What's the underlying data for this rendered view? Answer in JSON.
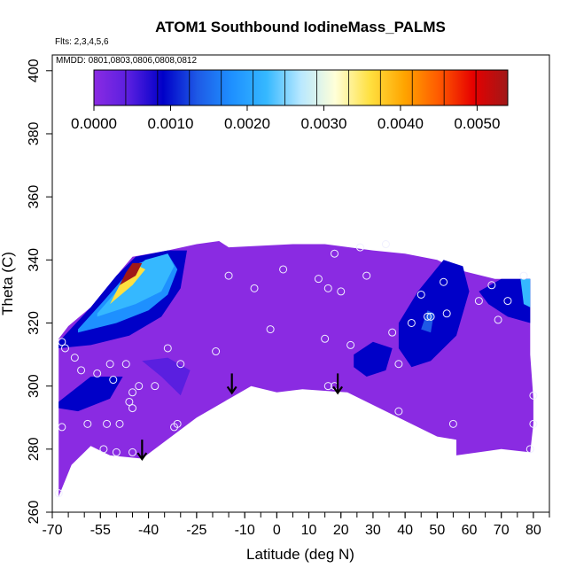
{
  "chart_data": {
    "type": "heatmap",
    "title": "ATOM1 Southbound IodineMass_PALMS",
    "flights_note": "Flts: 2,3,4,5,6",
    "dates_note": "MMDD: 0801,0803,0806,0808,0812",
    "xlabel": "Latitude (deg N)",
    "ylabel": "Theta (C)",
    "xlim": [
      -70,
      85
    ],
    "ylim": [
      260,
      405
    ],
    "x_ticks": [
      -70,
      -55,
      -40,
      -25,
      -10,
      0,
      10,
      20,
      30,
      40,
      50,
      60,
      70,
      80
    ],
    "x_tick_labels": [
      "-70",
      "-55",
      "-40",
      "-25",
      "-10",
      "0",
      "10",
      "20",
      "30",
      "40",
      "50",
      "60",
      "70",
      "80"
    ],
    "y_ticks": [
      260,
      280,
      300,
      320,
      340,
      360,
      380,
      400
    ],
    "y_tick_labels": [
      "260",
      "280",
      "300",
      "320",
      "340",
      "360",
      "380",
      "400"
    ],
    "colorbar": {
      "range": [
        0,
        0.0054
      ],
      "ticks": [
        0.0,
        0.001,
        0.002,
        0.003,
        0.004,
        0.005
      ],
      "tick_labels": [
        "0.0000",
        "0.0010",
        "0.0020",
        "0.0030",
        "0.0040",
        "0.0050"
      ],
      "colors": [
        "#8a2be2",
        "#5a1fe0",
        "#0000c8",
        "#1e5ae6",
        "#1e90ff",
        "#35b8ff",
        "#b8e8ff",
        "#ffffd8",
        "#ffe040",
        "#ffa500",
        "#ff5a00",
        "#e60000",
        "#a01818"
      ]
    },
    "fill_colors": {
      "background": "#8a2be2",
      "mid": "#5a1fe0",
      "dark": "#1010c8",
      "blue": "#1e50e6",
      "cyan": "#2ba8ff"
    },
    "domain_outline": [
      [
        -68,
        265
      ],
      [
        -64,
        275
      ],
      [
        -58,
        281
      ],
      [
        -52,
        278
      ],
      [
        -42,
        277
      ],
      [
        -25,
        290
      ],
      [
        -8,
        300
      ],
      [
        0,
        298
      ],
      [
        8,
        299
      ],
      [
        22,
        298
      ],
      [
        36,
        291
      ],
      [
        50,
        284
      ],
      [
        56,
        283
      ],
      [
        56,
        278
      ],
      [
        70,
        280
      ],
      [
        79,
        279
      ],
      [
        80,
        288
      ],
      [
        80,
        296
      ],
      [
        79,
        310
      ],
      [
        79,
        334
      ],
      [
        68,
        334
      ],
      [
        56,
        337
      ],
      [
        50,
        340
      ],
      [
        40,
        342
      ],
      [
        30,
        343
      ],
      [
        15,
        345
      ],
      [
        5,
        345
      ],
      [
        -15,
        344
      ],
      [
        -18,
        346
      ],
      [
        -25,
        345
      ],
      [
        -34,
        343
      ],
      [
        -45,
        341
      ],
      [
        -50,
        335
      ],
      [
        -58,
        325
      ],
      [
        -65,
        319
      ],
      [
        -68,
        315
      ]
    ],
    "features": [
      {
        "level": 0.0009,
        "poly": [
          [
            -68,
            314
          ],
          [
            -58,
            325
          ],
          [
            -50,
            335
          ],
          [
            -44,
            341
          ],
          [
            -34,
            343
          ],
          [
            -28,
            343
          ],
          [
            -30,
            331
          ],
          [
            -36,
            322
          ],
          [
            -46,
            316
          ],
          [
            -58,
            313
          ],
          [
            -68,
            312
          ]
        ]
      },
      {
        "level": 0.0018,
        "poly": [
          [
            -62,
            318
          ],
          [
            -54,
            327
          ],
          [
            -48,
            334
          ],
          [
            -43,
            339
          ],
          [
            -34,
            342
          ],
          [
            -31,
            337
          ],
          [
            -34,
            329
          ],
          [
            -40,
            324
          ],
          [
            -50,
            320
          ],
          [
            -62,
            317
          ]
        ]
      },
      {
        "level": 0.0022,
        "poly": [
          [
            -56,
            323
          ],
          [
            -50,
            330
          ],
          [
            -46,
            336
          ],
          [
            -41,
            340
          ],
          [
            -34,
            342
          ],
          [
            -32,
            338
          ],
          [
            -36,
            330
          ],
          [
            -44,
            326
          ],
          [
            -56,
            322
          ]
        ]
      },
      {
        "level": 0.0035,
        "poly": [
          [
            -52,
            326
          ],
          [
            -49,
            332
          ],
          [
            -46,
            336
          ],
          [
            -43,
            338
          ],
          [
            -41,
            337
          ],
          [
            -45,
            332
          ],
          [
            -52,
            326
          ]
        ]
      },
      {
        "level": 0.005,
        "poly": [
          [
            -49,
            332
          ],
          [
            -47,
            336
          ],
          [
            -45,
            339
          ],
          [
            -42,
            339
          ],
          [
            -44,
            335
          ],
          [
            -49,
            332
          ]
        ]
      },
      {
        "level": 0.0008,
        "poly": [
          [
            -42,
            308
          ],
          [
            -36,
            303
          ],
          [
            -30,
            297
          ],
          [
            -27,
            305
          ],
          [
            -34,
            309
          ],
          [
            -42,
            308
          ]
        ]
      },
      {
        "level": 0.0009,
        "poly": [
          [
            -68,
            295
          ],
          [
            -58,
            303
          ],
          [
            -48,
            303
          ],
          [
            -52,
            296
          ],
          [
            -62,
            292
          ],
          [
            -68,
            293
          ]
        ]
      },
      {
        "level": 0.0009,
        "poly": [
          [
            24,
            310
          ],
          [
            30,
            314
          ],
          [
            36,
            312
          ],
          [
            34,
            305
          ],
          [
            28,
            303
          ],
          [
            24,
            306
          ]
        ]
      },
      {
        "level": 0.001,
        "poly": [
          [
            38,
            320
          ],
          [
            44,
            330
          ],
          [
            52,
            340
          ],
          [
            58,
            338
          ],
          [
            60,
            330
          ],
          [
            56,
            316
          ],
          [
            48,
            308
          ],
          [
            42,
            306
          ],
          [
            38,
            312
          ]
        ]
      },
      {
        "level": 0.0016,
        "poly": [
          [
            45,
            318
          ],
          [
            47,
            324
          ],
          [
            49,
            323
          ],
          [
            48,
            317
          ]
        ]
      },
      {
        "level": 0.0011,
        "poly": [
          [
            63,
            330
          ],
          [
            70,
            334
          ],
          [
            79,
            334
          ],
          [
            79,
            320
          ],
          [
            72,
            322
          ],
          [
            66,
            326
          ]
        ]
      },
      {
        "level": 0.0022,
        "poly": [
          [
            76,
            334
          ],
          [
            79,
            334
          ],
          [
            79,
            325
          ],
          [
            77,
            326
          ]
        ]
      }
    ],
    "points": [
      [
        -68,
        266
      ],
      [
        -67,
        287
      ],
      [
        -66,
        312
      ],
      [
        -67,
        314
      ],
      [
        -63,
        309
      ],
      [
        -61,
        305
      ],
      [
        -59,
        288
      ],
      [
        -56,
        304
      ],
      [
        -54,
        280
      ],
      [
        -53,
        288
      ],
      [
        -52,
        307
      ],
      [
        -51,
        302
      ],
      [
        -50,
        279
      ],
      [
        -49,
        288
      ],
      [
        -47,
        307
      ],
      [
        -46,
        295
      ],
      [
        -45,
        298
      ],
      [
        -45,
        293
      ],
      [
        -45,
        279
      ],
      [
        -43,
        300
      ],
      [
        -38,
        300
      ],
      [
        -34,
        312
      ],
      [
        -32,
        287
      ],
      [
        -31,
        288
      ],
      [
        -30,
        307
      ],
      [
        -19,
        311
      ],
      [
        -15,
        335
      ],
      [
        -7,
        331
      ],
      [
        -2,
        318
      ],
      [
        2,
        337
      ],
      [
        13,
        334
      ],
      [
        16,
        331
      ],
      [
        15,
        315
      ],
      [
        18,
        342
      ],
      [
        20,
        330
      ],
      [
        23,
        313
      ],
      [
        16,
        300
      ],
      [
        18,
        300
      ],
      [
        26,
        344
      ],
      [
        28,
        335
      ],
      [
        34,
        345
      ],
      [
        36,
        317
      ],
      [
        38,
        307
      ],
      [
        38,
        292
      ],
      [
        42,
        320
      ],
      [
        45,
        329
      ],
      [
        47,
        322
      ],
      [
        48,
        322
      ],
      [
        52,
        333
      ],
      [
        53,
        323
      ],
      [
        55,
        288
      ],
      [
        63,
        327
      ],
      [
        67,
        332
      ],
      [
        69,
        321
      ],
      [
        72,
        327
      ],
      [
        77,
        335
      ],
      [
        79,
        280
      ],
      [
        80,
        288
      ],
      [
        80,
        297
      ]
    ],
    "arrows": [
      [
        -42,
        283
      ],
      [
        -14,
        304
      ],
      [
        19,
        304
      ]
    ]
  }
}
